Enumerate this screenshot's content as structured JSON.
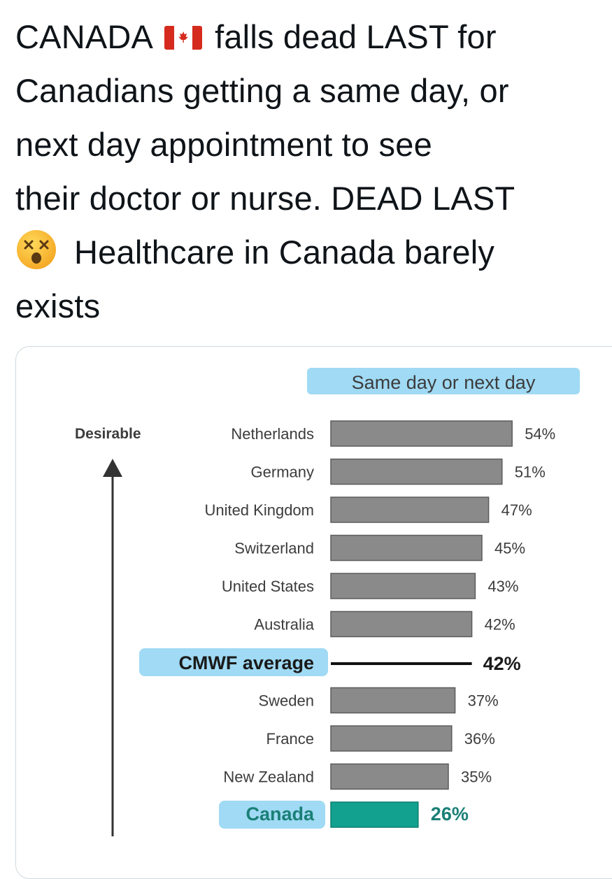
{
  "tweet": {
    "lines": [
      {
        "before": "CANADA",
        "flag": "canada-flag-icon",
        "after": "falls dead LAST for"
      },
      {
        "text": "Canadians getting a same day, or"
      },
      {
        "text": "next day appointment to see"
      },
      {
        "text": "their doctor or nurse. DEAD LAST"
      },
      {
        "emoji": "dizzy-face-icon",
        "text": "Healthcare in Canada barely"
      },
      {
        "text": "exists"
      }
    ]
  },
  "chart_data": {
    "type": "bar",
    "title": "Same day or next day",
    "axis_label": "Desirable",
    "categories": [
      "Netherlands",
      "Germany",
      "United Kingdom",
      "Switzerland",
      "United States",
      "Australia",
      "Sweden",
      "France",
      "New Zealand",
      "Canada"
    ],
    "values": [
      54,
      51,
      47,
      45,
      43,
      42,
      37,
      36,
      35,
      26
    ],
    "value_labels": [
      "54%",
      "51%",
      "47%",
      "45%",
      "43%",
      "42%",
      "37%",
      "36%",
      "35%",
      "26%"
    ],
    "average": {
      "label": "CMWF average",
      "value": 42,
      "value_label": "42%",
      "position_after": "Australia"
    },
    "highlighted": "Canada",
    "colors": {
      "bar": "#8a8a8a",
      "bar_border": "#5c5c5c",
      "highlight_bar": "#12a18f",
      "highlight_text": "#1a7f76",
      "highlighter": "#8fd3f2",
      "label_text": "#3c3c3c",
      "average_line": "#111111"
    }
  }
}
